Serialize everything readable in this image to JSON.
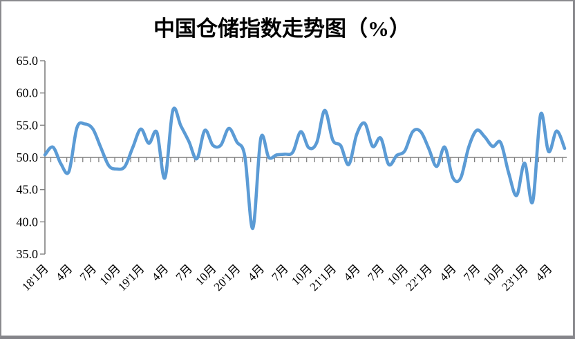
{
  "window": {
    "background": "#ffffff",
    "frame_color": "#8a8a8e"
  },
  "chart_data": {
    "type": "line",
    "title": "中国仓储指数走势图（%）",
    "smooth": true,
    "grid": false,
    "legend": "none",
    "line_color": "#5B9BD5",
    "axis_color": "#808080",
    "axis_cross_value": 50,
    "ylim": [
      35,
      65
    ],
    "y_tick_labels": [
      "65.0",
      "60.0",
      "55.0",
      "50.0",
      "45.0",
      "40.0",
      "35.0"
    ],
    "y_tick_values": [
      65,
      60,
      55,
      50,
      45,
      40,
      35
    ],
    "x_monthly_start": "2018-01",
    "x_tick_every_months": 3,
    "x_tick_labels": [
      "18'1月",
      "4月",
      "7月",
      "10月",
      "19'1月",
      "4月",
      "7月",
      "10月",
      "20'1月",
      "4月",
      "7月",
      "10月",
      "21'1月",
      "4月",
      "7月",
      "10月",
      "22'1月",
      "4月",
      "7月",
      "10月",
      "23'1月",
      "4月"
    ],
    "series": [
      {
        "name": "中国仓储指数",
        "values": [
          50.4,
          51.6,
          49.0,
          47.8,
          54.6,
          55.2,
          54.4,
          51.5,
          48.7,
          48.2,
          48.6,
          51.6,
          54.4,
          52.2,
          53.9,
          46.8,
          57.3,
          54.9,
          52.5,
          49.8,
          54.2,
          51.9,
          51.9,
          54.5,
          52.4,
          50.2,
          39.0,
          53.0,
          50.0,
          50.4,
          50.5,
          50.8,
          54.0,
          51.5,
          52.3,
          57.3,
          52.7,
          51.8,
          48.9,
          53.6,
          55.3,
          51.7,
          53.0,
          48.9,
          50.3,
          51.0,
          54.0,
          54.0,
          51.4,
          48.6,
          51.6,
          46.9,
          46.8,
          51.6,
          54.2,
          53.2,
          51.7,
          52.3,
          47.6,
          44.1,
          49.1,
          43.1,
          56.7,
          50.9,
          54.1,
          51.4
        ]
      }
    ]
  }
}
